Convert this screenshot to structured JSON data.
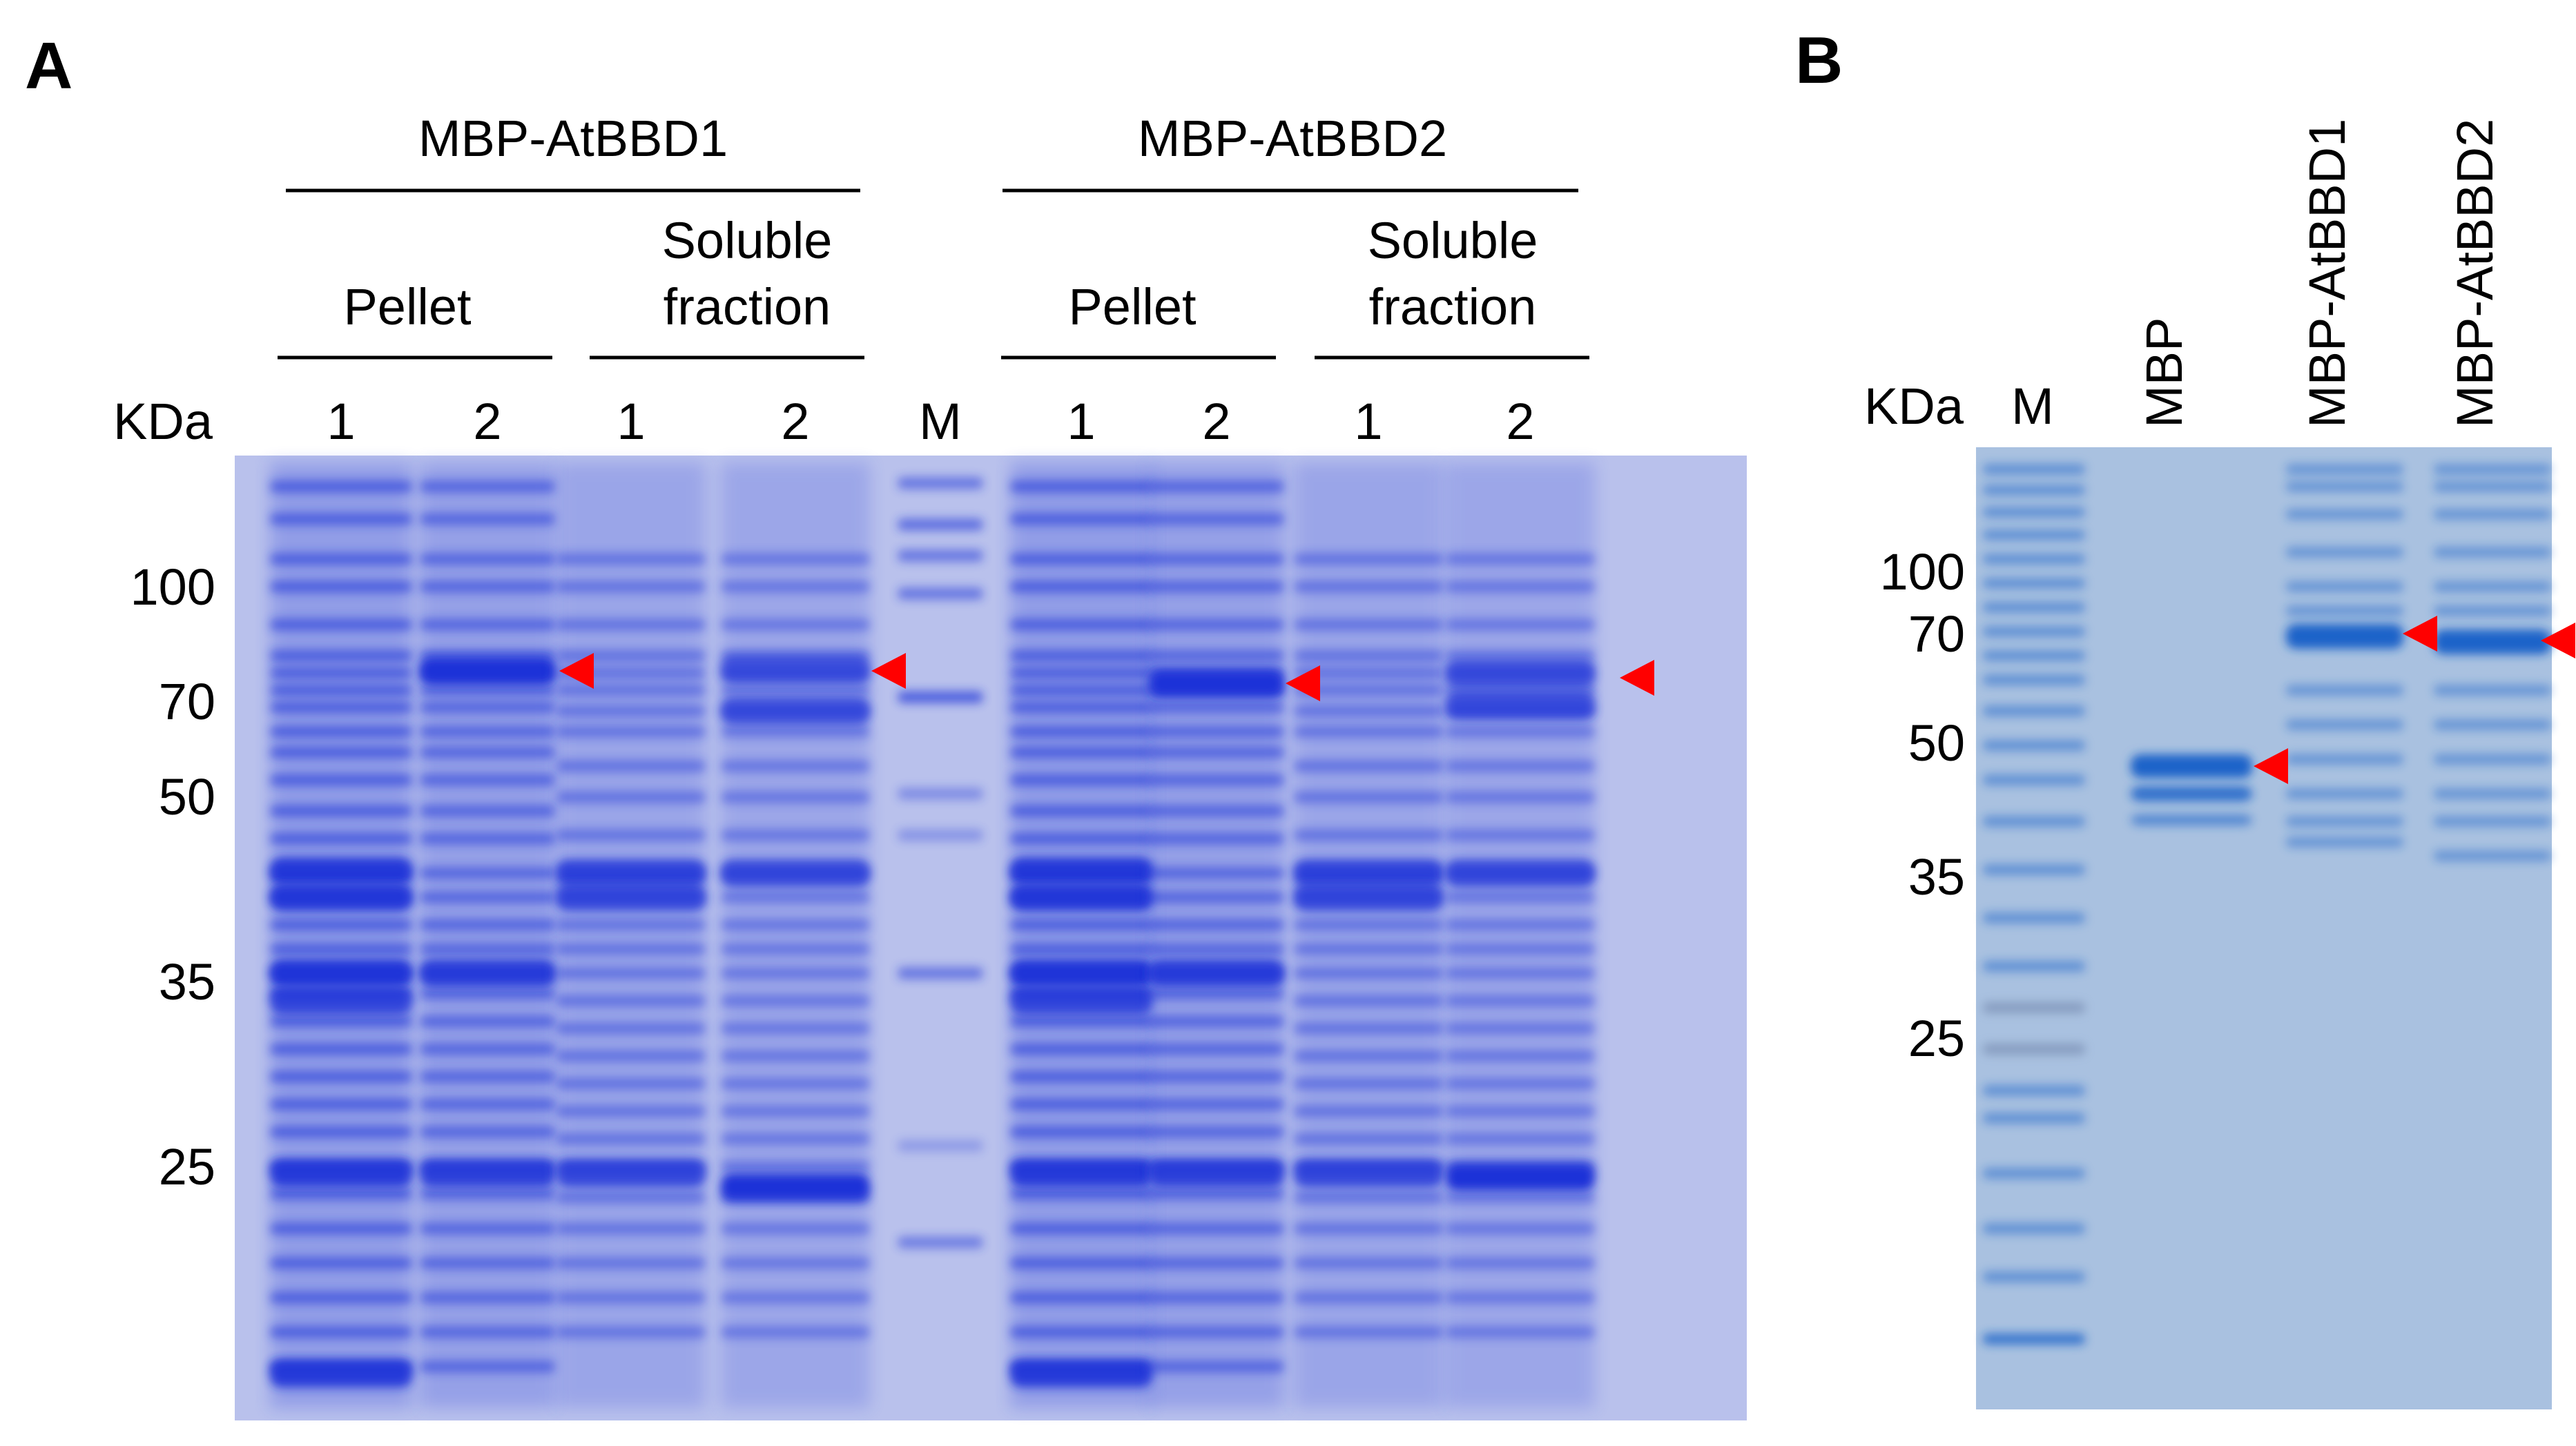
{
  "panel_a": {
    "letter": "A",
    "units": "KDa",
    "groups": [
      {
        "name": "MBP-AtBBD1",
        "fractions": [
          {
            "label": [
              "Pellet"
            ],
            "lanes": [
              "1",
              "2"
            ]
          },
          {
            "label": [
              "Soluble",
              "fraction"
            ],
            "lanes": [
              "1",
              "2"
            ]
          }
        ]
      },
      {
        "marker": "M"
      },
      {
        "name": "MBP-AtBBD2",
        "fractions": [
          {
            "label": [
              "Pellet"
            ],
            "lanes": [
              "1",
              "2"
            ]
          },
          {
            "label": [
              "Soluble",
              "fraction"
            ],
            "lanes": [
              "1",
              "2"
            ]
          }
        ]
      }
    ],
    "mw_markers": [
      "100",
      "70",
      "50",
      "35",
      "25"
    ]
  },
  "panel_b": {
    "letter": "B",
    "units": "KDa",
    "lanes": [
      "M",
      "MBP",
      "MBP-AtBBD1",
      "MBP-AtBBD2"
    ],
    "mw_markers": [
      "100",
      "70",
      "50",
      "35",
      "25"
    ]
  },
  "colors": {
    "gel_a_background": "#b9c1ec",
    "gel_a_band": "#1a32d8",
    "gel_b_background": "#a9c1e0",
    "gel_b_band": "#1f63c9",
    "arrow": "#ff0000"
  }
}
